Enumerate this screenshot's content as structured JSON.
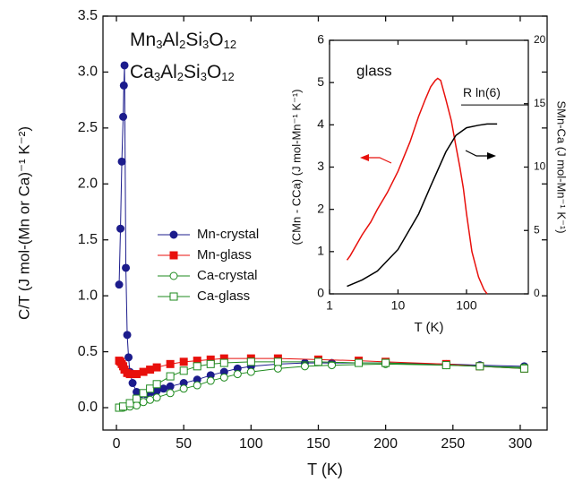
{
  "chart_data": [
    {
      "type": "scatter",
      "annotations": [
        "Mn3Al2Si3O12",
        "Ca3Al2Si3O12"
      ],
      "xlabel": "T (K)",
      "ylabel": "C/T (J mol-(Mn or Ca)⁻¹ K⁻²)",
      "xlim": [
        -10,
        320
      ],
      "ylim": [
        -0.2,
        3.5
      ],
      "xticks": [
        0,
        50,
        100,
        150,
        200,
        250,
        300
      ],
      "yticks": [
        {
          "value": 0,
          "label": "0.0"
        },
        {
          "value": 0.5,
          "label": "0.5"
        },
        {
          "value": 1,
          "label": "1.0"
        },
        {
          "value": 1.5,
          "label": "1.5"
        },
        {
          "value": 2,
          "label": "2.0"
        },
        {
          "value": 2.5,
          "label": "2.5"
        },
        {
          "value": 3,
          "label": "3.0"
        },
        {
          "value": 3.5,
          "label": "3.5"
        }
      ],
      "legend": "center-left",
      "series": [
        {
          "name": "Mn-crystal",
          "color": "#1c1c8c",
          "marker": "circle",
          "filled": true,
          "x": [
            2,
            3,
            4,
            5,
            5.5,
            6,
            7,
            8,
            9,
            10,
            12,
            15,
            18,
            22,
            26,
            30,
            35,
            40,
            50,
            60,
            70,
            80,
            90,
            100,
            120,
            140,
            160,
            200,
            245,
            270,
            303
          ],
          "values": [
            1.1,
            1.6,
            2.2,
            2.6,
            2.88,
            3.06,
            1.25,
            0.65,
            0.45,
            0.32,
            0.22,
            0.14,
            0.12,
            0.12,
            0.14,
            0.15,
            0.17,
            0.19,
            0.22,
            0.25,
            0.29,
            0.32,
            0.35,
            0.37,
            0.39,
            0.4,
            0.4,
            0.4,
            0.39,
            0.38,
            0.37
          ]
        },
        {
          "name": "Mn-glass",
          "color": "#e8100c",
          "marker": "square",
          "filled": true,
          "x": [
            2,
            3,
            4,
            5,
            6,
            8,
            10,
            15,
            20,
            25,
            30,
            40,
            50,
            60,
            70,
            80,
            100,
            120,
            150,
            180,
            200,
            245,
            270,
            303
          ],
          "values": [
            0.42,
            0.41,
            0.39,
            0.37,
            0.34,
            0.31,
            0.3,
            0.3,
            0.32,
            0.34,
            0.36,
            0.39,
            0.41,
            0.42,
            0.43,
            0.44,
            0.44,
            0.44,
            0.43,
            0.42,
            0.41,
            0.39,
            0.37,
            0.35
          ]
        },
        {
          "name": "Ca-crystal",
          "color": "#1e8a1e",
          "marker": "circle",
          "filled": false,
          "x": [
            2,
            5,
            10,
            15,
            20,
            25,
            30,
            40,
            50,
            60,
            70,
            80,
            90,
            100,
            120,
            140,
            160,
            200,
            245,
            270,
            303
          ],
          "values": [
            0,
            0,
            0.01,
            0.02,
            0.05,
            0.07,
            0.09,
            0.13,
            0.17,
            0.2,
            0.24,
            0.27,
            0.3,
            0.32,
            0.35,
            0.37,
            0.38,
            0.39,
            0.38,
            0.37,
            0.36
          ]
        },
        {
          "name": "Ca-glass",
          "color": "#1e8a1e",
          "marker": "square",
          "filled": false,
          "x": [
            2,
            5,
            10,
            15,
            20,
            25,
            30,
            40,
            50,
            60,
            70,
            80,
            100,
            120,
            150,
            180,
            200,
            245,
            270,
            303
          ],
          "values": [
            0,
            0.01,
            0.04,
            0.08,
            0.13,
            0.17,
            0.21,
            0.28,
            0.33,
            0.37,
            0.39,
            0.4,
            0.41,
            0.41,
            0.41,
            0.4,
            0.4,
            0.38,
            0.37,
            0.35
          ]
        }
      ]
    },
    {
      "type": "line",
      "annotations": [
        "glass"
      ],
      "reference": {
        "label": "R ln(6)",
        "value": 14.9
      },
      "xlabel": "T (K)",
      "ylabel": "(CMn - CCa) (J mol-Mn⁻¹ K⁻¹)",
      "y2label": "SMn-Ca (J mol-Mn⁻¹ K⁻¹)",
      "xscale": "log",
      "xlim": [
        1,
        800
      ],
      "ylim": [
        0,
        6
      ],
      "y2lim": [
        0,
        20
      ],
      "xticks": [
        1,
        10,
        100
      ],
      "yticks": [
        0,
        1,
        2,
        3,
        4,
        5,
        6
      ],
      "y2ticks": [
        0,
        5,
        10,
        15,
        20
      ],
      "series": [
        {
          "color": "#e8100c",
          "x": [
            1.8,
            2,
            3,
            4,
            5,
            7,
            10,
            15,
            20,
            25,
            30,
            35,
            38,
            42,
            50,
            60,
            70,
            80,
            90,
            100,
            120,
            150,
            180,
            200
          ],
          "values": [
            0.8,
            0.9,
            1.4,
            1.7,
            2.0,
            2.4,
            2.9,
            3.6,
            4.2,
            4.6,
            4.9,
            5.05,
            5.1,
            5.05,
            4.6,
            4.1,
            3.5,
            3.0,
            2.5,
            1.9,
            1.0,
            0.4,
            0.1,
            0
          ]
        },
        {
          "color": "#000000",
          "axis": "y2",
          "x": [
            1.8,
            3,
            5,
            10,
            20,
            30,
            50,
            70,
            100,
            150,
            200,
            280
          ],
          "values": [
            0.6,
            1.1,
            1.8,
            3.5,
            6.3,
            8.5,
            11.2,
            12.5,
            13.1,
            13.3,
            13.4,
            13.4
          ]
        }
      ]
    }
  ]
}
